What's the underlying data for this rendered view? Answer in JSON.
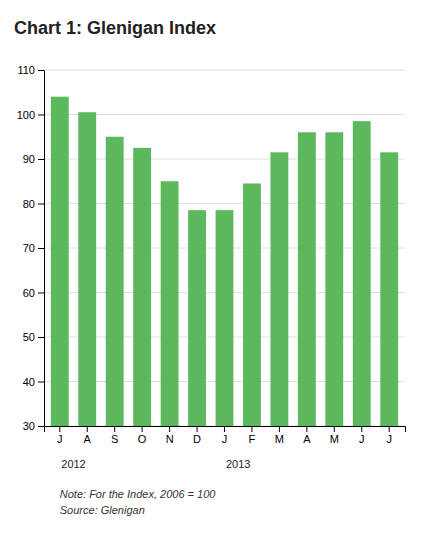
{
  "chart_data": {
    "type": "bar",
    "title": "Chart 1: Glenigan Index",
    "categories": [
      "J",
      "A",
      "S",
      "O",
      "N",
      "D",
      "J",
      "F",
      "M",
      "A",
      "M",
      "J",
      "J"
    ],
    "values": [
      104,
      100.5,
      95,
      92.5,
      85,
      78.5,
      78.5,
      84.5,
      91.5,
      96,
      96,
      98.5,
      91.5
    ],
    "color": "#5cb85c",
    "ylim": [
      30,
      110
    ],
    "yticks": [
      30,
      40,
      50,
      60,
      70,
      80,
      90,
      100,
      110
    ],
    "grid": true,
    "annotations": [
      {
        "text": "2012",
        "x": 0.5
      },
      {
        "text": "2013",
        "x": 6.5
      }
    ],
    "notes": [
      "Note: For the Index, 2006 = 100",
      "Source: Glenigan"
    ]
  }
}
